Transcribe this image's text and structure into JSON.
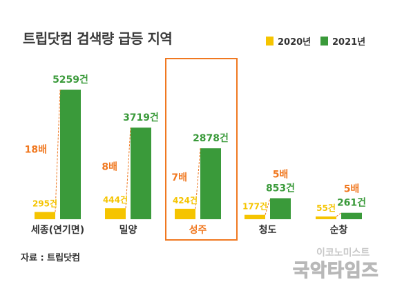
{
  "colors": {
    "y2020": "#f5c400",
    "y2021": "#3a9a3a",
    "multiplier": "#f07820",
    "highlight": "#f07820"
  },
  "title": "트립닷컴 검색량 급등 지역",
  "legend": [
    {
      "label": "2020년"
    },
    {
      "label": "2021년"
    }
  ],
  "source": "자료 : 트립닷컴",
  "watermark": {
    "line1": "이코노미스트",
    "line2": "국악타임즈"
  },
  "chart_data": {
    "type": "bar",
    "title": "트립닷컴 검색량 급등 지역",
    "categories": [
      "세종(연기면)",
      "밀양",
      "성주",
      "청도",
      "순창"
    ],
    "highlighted_category": "성주",
    "series": [
      {
        "name": "2020년",
        "values": [
          295,
          444,
          424,
          177,
          55
        ],
        "labels": [
          "295건",
          "444건",
          "424건",
          "177건",
          "55건"
        ]
      },
      {
        "name": "2021년",
        "values": [
          5259,
          3719,
          2878,
          853,
          261
        ],
        "labels": [
          "5259건",
          "3719건",
          "2878건",
          "853건",
          "261건"
        ]
      }
    ],
    "multipliers": [
      "18배",
      "8배",
      "7배",
      "5배",
      "5배"
    ],
    "grid": false,
    "legend_position": "top-right"
  }
}
